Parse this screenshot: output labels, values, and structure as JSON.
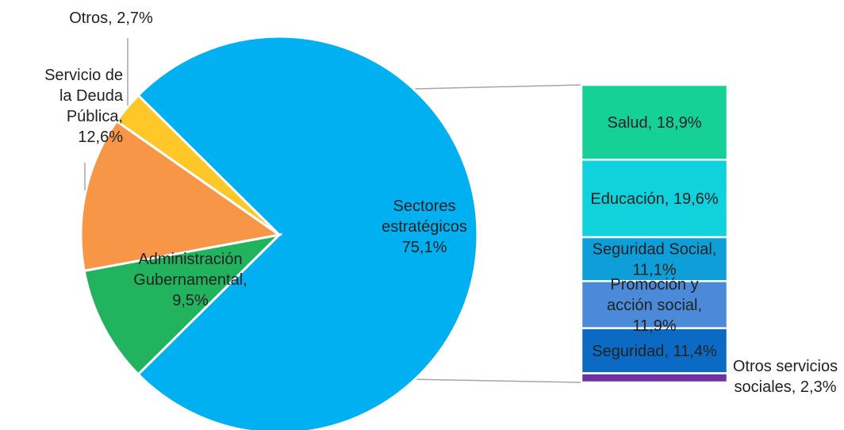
{
  "chart_data": {
    "type": "pie",
    "title": "",
    "slices": [
      {
        "name": "Sectores estratégicos",
        "lines": [
          "Sectores",
          "estratégicos",
          "75,1%"
        ],
        "value": 75.1,
        "color": "#00b0f0"
      },
      {
        "name": "Administración Gubernamental",
        "lines": [
          "Administración",
          "Gubernamental,",
          "9,5%"
        ],
        "value": 9.5,
        "color": "#22b35e"
      },
      {
        "name": "Servicio de la Deuda Pública",
        "lines": [
          "Servicio de",
          "la Deuda",
          "Pública,",
          "12,6%"
        ],
        "value": 12.6,
        "color": "#f79646"
      },
      {
        "name": "Otros",
        "lines": [
          "Otros, 2,7%"
        ],
        "value": 2.7,
        "color": "#ffc828"
      }
    ],
    "breakdown_of": "Sectores estratégicos",
    "breakdown": [
      {
        "name": "Salud",
        "lines": [
          "Salud, 18,9%"
        ],
        "value": 18.9,
        "color": "#15d196"
      },
      {
        "name": "Educación",
        "lines": [
          "Educación, 19,6%"
        ],
        "value": 19.6,
        "color": "#0fd2dc"
      },
      {
        "name": "Seguridad Social",
        "lines": [
          "Seguridad Social,",
          "11,1%"
        ],
        "value": 11.1,
        "color": "#0e9ed8"
      },
      {
        "name": "Promoción y acción social",
        "lines": [
          "Promoción y",
          "acción social,",
          "11,9%"
        ],
        "value": 11.9,
        "color": "#4a8ad8"
      },
      {
        "name": "Seguridad",
        "lines": [
          "Seguridad, 11,4%"
        ],
        "value": 11.4,
        "color": "#0b6ac4"
      },
      {
        "name": "Otros servicios sociales",
        "lines": [
          "Otros servicios",
          "sociales, 2,3%"
        ],
        "value": 2.3,
        "color": "#7030a0"
      }
    ]
  }
}
